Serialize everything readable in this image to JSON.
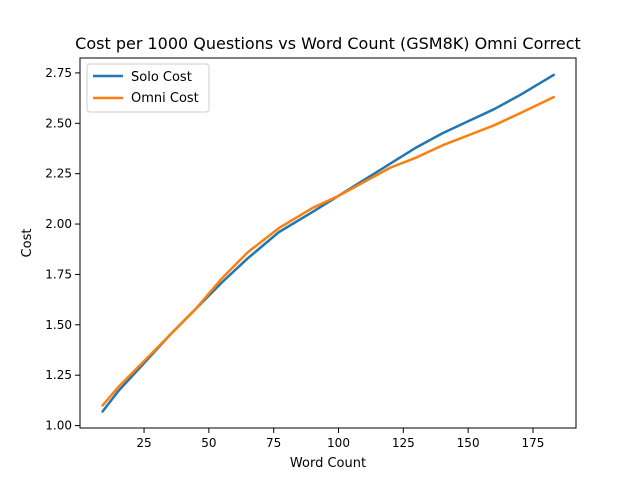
{
  "chart_data": {
    "type": "line",
    "title": "Cost per 1000 Questions vs Word Count (GSM8K) Omni Correct",
    "xlabel": "Word Count",
    "ylabel": "Cost",
    "xlim": [
      0.3,
      191.6
    ],
    "ylim": [
      0.988,
      2.824
    ],
    "xticks": [
      25,
      50,
      75,
      100,
      125,
      150,
      175
    ],
    "xtick_labels": [
      "25",
      "50",
      "75",
      "100",
      "125",
      "150",
      "175"
    ],
    "yticks": [
      1.0,
      1.25,
      1.5,
      1.75,
      2.0,
      2.25,
      2.5,
      2.75
    ],
    "ytick_labels": [
      "1.00",
      "1.25",
      "1.50",
      "1.75",
      "2.00",
      "2.25",
      "2.50",
      "2.75"
    ],
    "grid": false,
    "legend_position": "upper-left",
    "series": [
      {
        "name": "Solo Cost",
        "color": "#1f77b4",
        "x": [
          9,
          15,
          25,
          35,
          45,
          55,
          65,
          77,
          90,
          100,
          110,
          120,
          130,
          140,
          150,
          160,
          170,
          183
        ],
        "y": [
          1.07,
          1.17,
          1.31,
          1.45,
          1.58,
          1.71,
          1.83,
          1.96,
          2.06,
          2.14,
          2.22,
          2.3,
          2.38,
          2.45,
          2.51,
          2.57,
          2.64,
          2.74
        ]
      },
      {
        "name": "Omni Cost",
        "color": "#ff7f0e",
        "x": [
          9,
          15,
          25,
          35,
          45,
          55,
          65,
          77,
          90,
          100,
          110,
          120,
          130,
          140,
          150,
          160,
          170,
          183
        ],
        "y": [
          1.1,
          1.19,
          1.32,
          1.45,
          1.58,
          1.73,
          1.86,
          1.98,
          2.08,
          2.14,
          2.21,
          2.28,
          2.33,
          2.39,
          2.44,
          2.49,
          2.55,
          2.63
        ]
      }
    ]
  }
}
